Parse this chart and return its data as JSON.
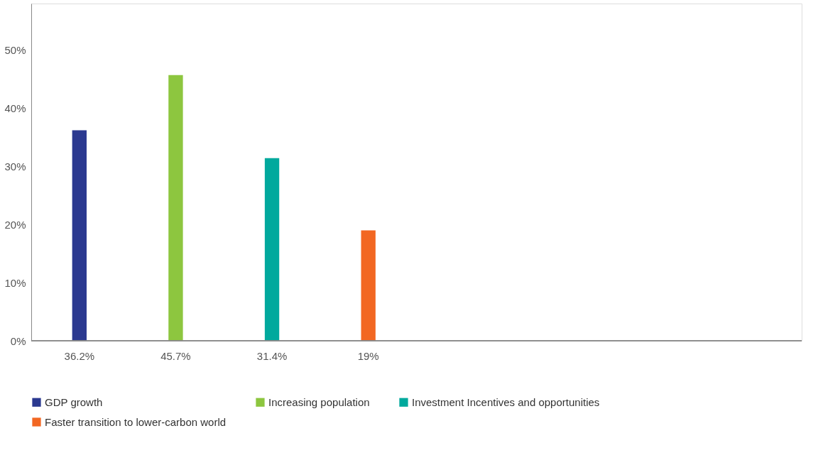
{
  "chart_data": {
    "type": "bar",
    "categories": [
      "36.2%",
      "45.7%",
      "31.4%",
      "19%"
    ],
    "series": [
      {
        "name": "GDP growth",
        "color": "#2b3990",
        "values": [
          36.2,
          null,
          null,
          null
        ]
      },
      {
        "name": "Increasing population",
        "color": "#8dc63f",
        "values": [
          null,
          45.7,
          null,
          null
        ]
      },
      {
        "name": "Investment Incentives and opportunities",
        "color": "#00a99d",
        "values": [
          null,
          null,
          31.4,
          null
        ]
      },
      {
        "name": "Faster transition to lower-carbon world",
        "color": "#f26722",
        "values": [
          null,
          null,
          null,
          19
        ]
      }
    ],
    "ylim": [
      0,
      58
    ],
    "yticks": [
      {
        "value": 0,
        "label": "0%"
      },
      {
        "value": 10,
        "label": "10%"
      },
      {
        "value": 20,
        "label": "20%"
      },
      {
        "value": 30,
        "label": "30%"
      },
      {
        "value": 40,
        "label": "40%"
      },
      {
        "value": 50,
        "label": "50%"
      }
    ],
    "grid": false,
    "legend": "bottom"
  }
}
